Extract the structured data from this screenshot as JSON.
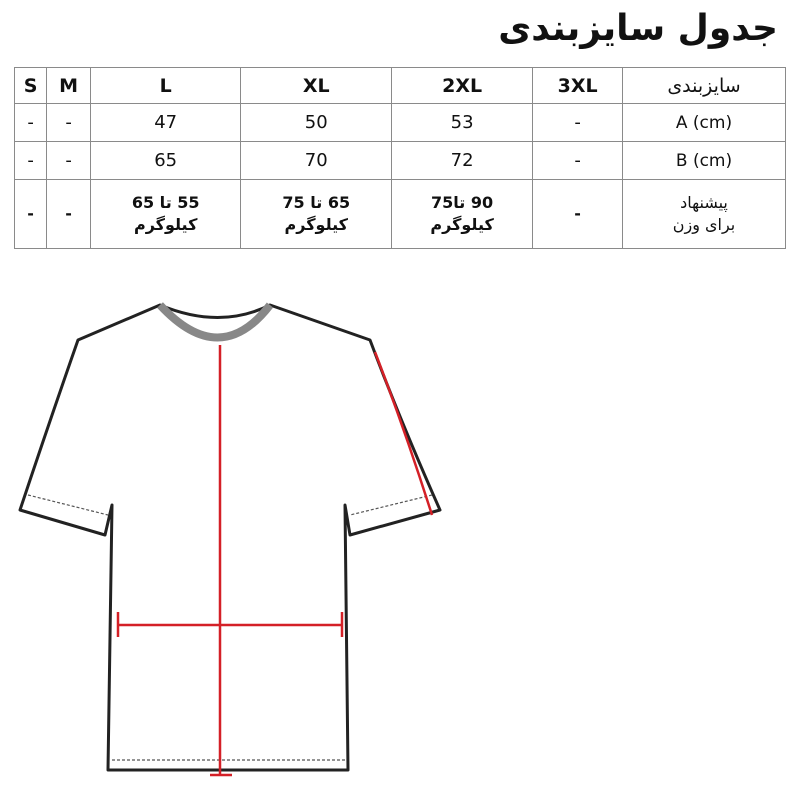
{
  "title": "جدول سایزبندی",
  "table": {
    "header_label": "سایزبندی",
    "sizes": [
      "3XL",
      "2XL",
      "XL",
      "L",
      "M",
      "S"
    ],
    "rows": [
      {
        "label": "A (cm)",
        "values": [
          "-",
          "53",
          "50",
          "47",
          "-",
          "-"
        ]
      },
      {
        "label": "B (cm)",
        "values": [
          "-",
          "72",
          "70",
          "65",
          "-",
          "-"
        ]
      }
    ],
    "weight_row": {
      "label_line1": "پیشنهاد",
      "label_line2": "برای وزن",
      "values": [
        "-",
        "90 تا75",
        "65 تا 75",
        "55 تا 65",
        "-",
        "-"
      ],
      "unit": "کیلوگرم"
    }
  },
  "colors": {
    "measure_line": "#d42027",
    "outline": "#222222"
  }
}
